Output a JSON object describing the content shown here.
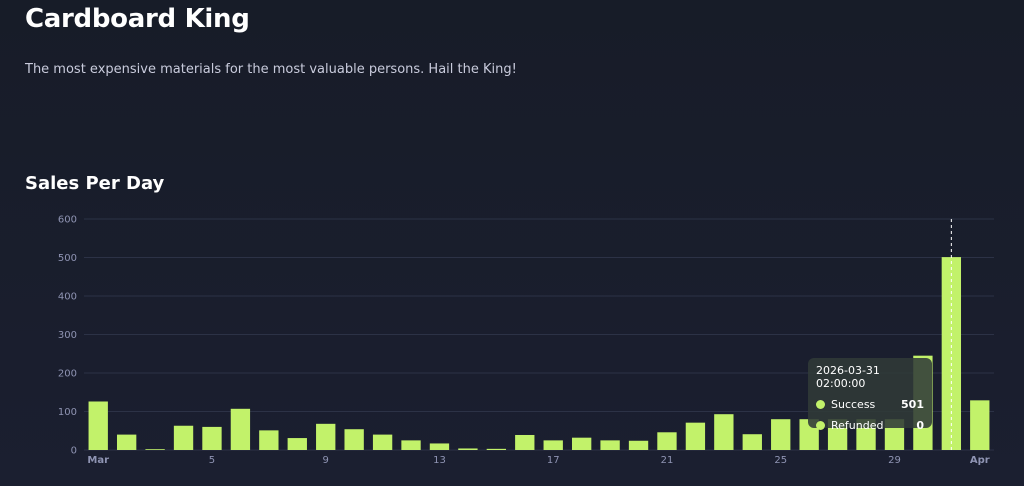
{
  "header": {
    "title": "Cardboard King",
    "subtitle": "The most expensive materials for the most valuable persons. Hail the King!"
  },
  "section": {
    "title": "Sales Per Day"
  },
  "tooltip": {
    "date": "2026-03-31 02:00:00",
    "rows": [
      {
        "label": "Success",
        "value": "501"
      },
      {
        "label": "Refunded",
        "value": "0"
      }
    ]
  },
  "colors": {
    "bar": "#c2f26a",
    "grid": "#2c3246",
    "axis_text": "#8f94b3"
  },
  "chart_data": {
    "type": "bar",
    "title": "Sales Per Day",
    "x": [
      "2026-03-01",
      "2026-03-02",
      "2026-03-03",
      "2026-03-04",
      "2026-03-05",
      "2026-03-06",
      "2026-03-07",
      "2026-03-08",
      "2026-03-09",
      "2026-03-10",
      "2026-03-11",
      "2026-03-12",
      "2026-03-13",
      "2026-03-14",
      "2026-03-15",
      "2026-03-16",
      "2026-03-17",
      "2026-03-18",
      "2026-03-19",
      "2026-03-20",
      "2026-03-21",
      "2026-03-22",
      "2026-03-23",
      "2026-03-24",
      "2026-03-25",
      "2026-03-26",
      "2026-03-27",
      "2026-03-28",
      "2026-03-29",
      "2026-03-30",
      "2026-03-31",
      "2026-04-01"
    ],
    "series": [
      {
        "name": "Success",
        "values": [
          126,
          40,
          2,
          63,
          60,
          107,
          51,
          31,
          68,
          54,
          40,
          25,
          17,
          4,
          3,
          39,
          25,
          32,
          25,
          24,
          46,
          71,
          93,
          41,
          80,
          80,
          80,
          80,
          80,
          245,
          501,
          129
        ]
      },
      {
        "name": "Refunded",
        "values": [
          0,
          0,
          0,
          0,
          0,
          0,
          0,
          0,
          0,
          0,
          0,
          0,
          0,
          0,
          0,
          0,
          0,
          0,
          0,
          0,
          0,
          0,
          0,
          0,
          0,
          0,
          0,
          0,
          0,
          0,
          0,
          0
        ]
      }
    ],
    "x_tick_labels": [
      {
        "label": "Mar",
        "bold": true
      },
      {
        "label": "5",
        "bold": false
      },
      {
        "label": "9",
        "bold": false
      },
      {
        "label": "13",
        "bold": false
      },
      {
        "label": "17",
        "bold": false
      },
      {
        "label": "21",
        "bold": false
      },
      {
        "label": "25",
        "bold": false
      },
      {
        "label": "29",
        "bold": false
      },
      {
        "label": "Apr",
        "bold": true
      }
    ],
    "y_ticks": [
      0,
      100,
      200,
      300,
      400,
      500,
      600
    ],
    "ylim": [
      0,
      600
    ],
    "grid": true,
    "highlight": "2026-03-31",
    "xlabel": "",
    "ylabel": ""
  }
}
